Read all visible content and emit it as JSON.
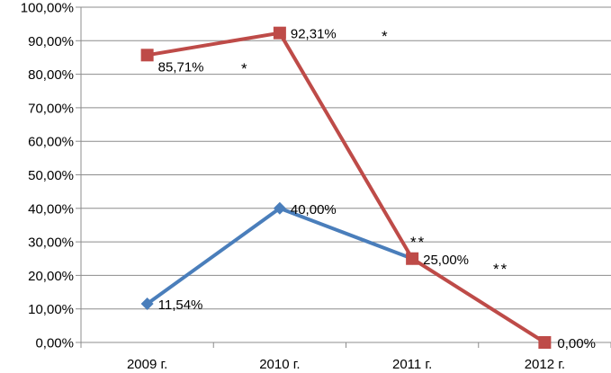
{
  "chart_data": {
    "type": "line",
    "categories": [
      "2009 г.",
      "2010 г.",
      "2011 г.",
      "2012 г."
    ],
    "y_ticks": [
      "0,00%",
      "10,00%",
      "20,00%",
      "30,00%",
      "40,00%",
      "50,00%",
      "60,00%",
      "70,00%",
      "80,00%",
      "90,00%",
      "100,00%"
    ],
    "ylim": [
      0,
      100
    ],
    "grid": true,
    "legend": "none",
    "series": [
      {
        "color": "#4a7ebb",
        "marker": "diamond",
        "values": [
          11.54,
          40.0,
          25.0,
          null
        ],
        "labels": [
          "11,54%",
          "40,00%",
          "",
          ""
        ]
      },
      {
        "color": "#be4b48",
        "marker": "square",
        "values": [
          85.71,
          92.31,
          25.0,
          0.0
        ],
        "labels": [
          "85,71%",
          "92,31%",
          "25,00%",
          "0,00%"
        ]
      }
    ],
    "annotations": [
      "*",
      "*",
      "**",
      "**"
    ]
  }
}
